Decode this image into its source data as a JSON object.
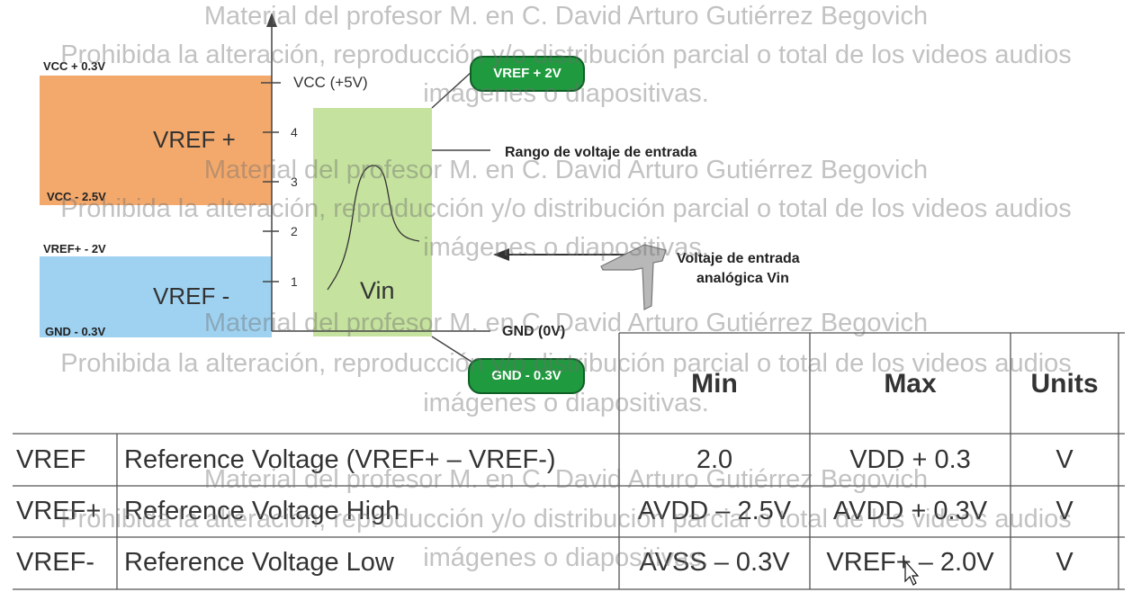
{
  "diagram": {
    "vcc_plus": "VCC + 0.3V",
    "vcc_minus": "VCC - 2.5V",
    "vref_plus_minus": "VREF+ - 2V",
    "gnd_minus": "GND - 0.3V",
    "vref_plus_box": "VREF +",
    "vref_minus_box": "VREF -",
    "vcc_tick": "VCC (+5V)",
    "ticks": [
      "4",
      "3",
      "2",
      "1"
    ],
    "vin": "Vin",
    "pill_top": "VREF + 2V",
    "pill_bottom": "GND - 0.3V",
    "input_range": "Rango de voltaje de entrada",
    "analog_input_line1": "Voltaje de entrada",
    "analog_input_line2": "analógica Vin",
    "gnd_label": "GND (0V)",
    "colors": {
      "orange": "#f4a96c",
      "blue": "#9fd2f1",
      "green": "#c5e29e",
      "pill": "#1f9a3f"
    }
  },
  "table": {
    "headers": [
      "Min",
      "Max",
      "Units"
    ],
    "rows": [
      {
        "symbol": "VREF",
        "desc": "Reference Voltage (VREF+ – VREF-)",
        "min": "2.0",
        "max": "VDD + 0.3",
        "units": "V"
      },
      {
        "symbol": "VREF+",
        "desc": "Reference Voltage High",
        "min": "AVDD – 2.5V",
        "max": "AVDD + 0.3V",
        "units": "V"
      },
      {
        "symbol": "VREF-",
        "desc": "Reference Voltage Low",
        "min": "AVSS – 0.3V",
        "max": "VREF+ – 2.0V",
        "units": "V"
      }
    ]
  },
  "watermark": {
    "line1": "Material del profesor M. en C. David Arturo Gutiérrez Begovich",
    "line2": "Prohibida la alteración, reproducción y/o distribución parcial o total de los videos audios",
    "line3": "imágenes o diapositivas."
  }
}
